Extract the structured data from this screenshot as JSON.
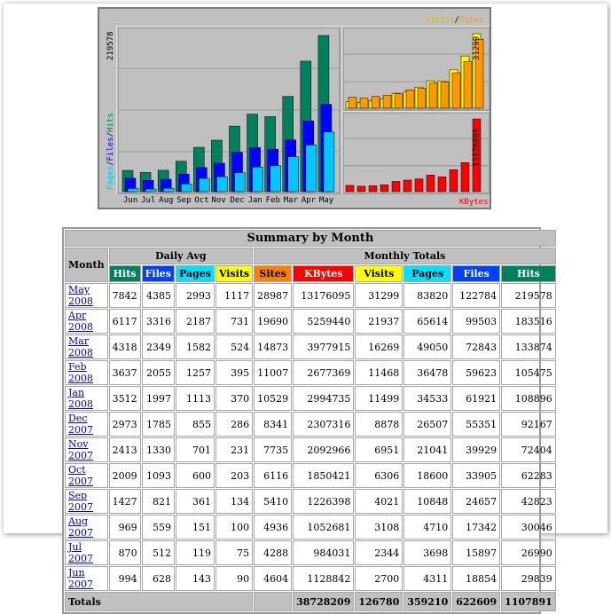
{
  "graph": {
    "legend_left": {
      "pages": "Pages",
      "files": "Files",
      "hits": "Hits",
      "sep": "/"
    },
    "legend_right_top": {
      "visits": "Visits",
      "sites": "Sites",
      "sep": "/"
    },
    "legend_right_bottom": "KBytes",
    "left_max_label": "219578",
    "right_top_max_label": "31299",
    "right_bottom_max_label": "13176095",
    "months": [
      "Jun",
      "Jul",
      "Aug",
      "Sep",
      "Oct",
      "Nov",
      "Dec",
      "Jan",
      "Feb",
      "Mar",
      "Apr",
      "May"
    ],
    "colors": {
      "hits": "#00805c",
      "files": "#0000ff",
      "pages": "#00c8ff",
      "visits": "#ffff00",
      "sites": "#ff9900",
      "kbytes": "#ff0000",
      "bg": "#c0c0c0"
    }
  },
  "chart_data": {
    "type": "bar",
    "categories": [
      "Jun",
      "Jul",
      "Aug",
      "Sep",
      "Oct",
      "Nov",
      "Dec",
      "Jan",
      "Feb",
      "Mar",
      "Apr",
      "May"
    ],
    "series": [
      {
        "name": "Hits",
        "values": [
          29839,
          26990,
          30046,
          42823,
          62283,
          72404,
          92167,
          108896,
          105475,
          133874,
          183516,
          219578
        ]
      },
      {
        "name": "Files",
        "values": [
          18854,
          15897,
          17342,
          24657,
          33905,
          39929,
          55351,
          61921,
          59623,
          72843,
          99503,
          122784
        ]
      },
      {
        "name": "Pages",
        "values": [
          4311,
          3698,
          4710,
          10848,
          18600,
          21041,
          26507,
          34533,
          36478,
          49050,
          65614,
          83820
        ]
      },
      {
        "name": "Visits",
        "values": [
          2700,
          2344,
          3108,
          4021,
          6306,
          6951,
          8878,
          11499,
          11468,
          16269,
          21937,
          31299
        ]
      },
      {
        "name": "Sites",
        "values": [
          4604,
          4288,
          4936,
          5410,
          6116,
          7735,
          8341,
          10529,
          11007,
          14873,
          19690,
          28987
        ]
      },
      {
        "name": "KBytes",
        "values": [
          1128842,
          984031,
          1052681,
          1226398,
          1850421,
          2092966,
          2307316,
          2994735,
          2677369,
          3977915,
          5259440,
          13176095
        ]
      }
    ]
  },
  "summary": {
    "title": "Summary by Month",
    "month_header": "Month",
    "daily_avg_header": "Daily Avg",
    "monthly_totals_header": "Monthly Totals",
    "col_headers": [
      "Hits",
      "Files",
      "Pages",
      "Visits",
      "Sites",
      "KBytes",
      "Visits",
      "Pages",
      "Files",
      "Hits"
    ],
    "rows": [
      {
        "month": "May 2008",
        "vals": [
          "7842",
          "4385",
          "2993",
          "1117",
          "28987",
          "13176095",
          "31299",
          "83820",
          "122784",
          "219578"
        ]
      },
      {
        "month": "Apr 2008",
        "vals": [
          "6117",
          "3316",
          "2187",
          "731",
          "19690",
          "5259440",
          "21937",
          "65614",
          "99503",
          "183516"
        ]
      },
      {
        "month": "Mar 2008",
        "vals": [
          "4318",
          "2349",
          "1582",
          "524",
          "14873",
          "3977915",
          "16269",
          "49050",
          "72843",
          "133874"
        ]
      },
      {
        "month": "Feb 2008",
        "vals": [
          "3637",
          "2055",
          "1257",
          "395",
          "11007",
          "2677369",
          "11468",
          "36478",
          "59623",
          "105475"
        ]
      },
      {
        "month": "Jan 2008",
        "vals": [
          "3512",
          "1997",
          "1113",
          "370",
          "10529",
          "2994735",
          "11499",
          "34533",
          "61921",
          "108896"
        ]
      },
      {
        "month": "Dec 2007",
        "vals": [
          "2973",
          "1785",
          "855",
          "286",
          "8341",
          "2307316",
          "8878",
          "26507",
          "55351",
          "92167"
        ]
      },
      {
        "month": "Nov 2007",
        "vals": [
          "2413",
          "1330",
          "701",
          "231",
          "7735",
          "2092966",
          "6951",
          "21041",
          "39929",
          "72404"
        ]
      },
      {
        "month": "Oct 2007",
        "vals": [
          "2009",
          "1093",
          "600",
          "203",
          "6116",
          "1850421",
          "6306",
          "18600",
          "33905",
          "62283"
        ]
      },
      {
        "month": "Sep 2007",
        "vals": [
          "1427",
          "821",
          "361",
          "134",
          "5410",
          "1226398",
          "4021",
          "10848",
          "24657",
          "42823"
        ]
      },
      {
        "month": "Aug 2007",
        "vals": [
          "969",
          "559",
          "151",
          "100",
          "4936",
          "1052681",
          "3108",
          "4710",
          "17342",
          "30046"
        ]
      },
      {
        "month": "Jul 2007",
        "vals": [
          "870",
          "512",
          "119",
          "75",
          "4288",
          "984031",
          "2344",
          "3698",
          "15897",
          "26990"
        ]
      },
      {
        "month": "Jun 2007",
        "vals": [
          "994",
          "628",
          "143",
          "90",
          "4604",
          "1128842",
          "2700",
          "4311",
          "18854",
          "29839"
        ]
      }
    ],
    "totals_label": "Totals",
    "totals": [
      "38728209",
      "126780",
      "359210",
      "622609",
      "1107891"
    ]
  }
}
